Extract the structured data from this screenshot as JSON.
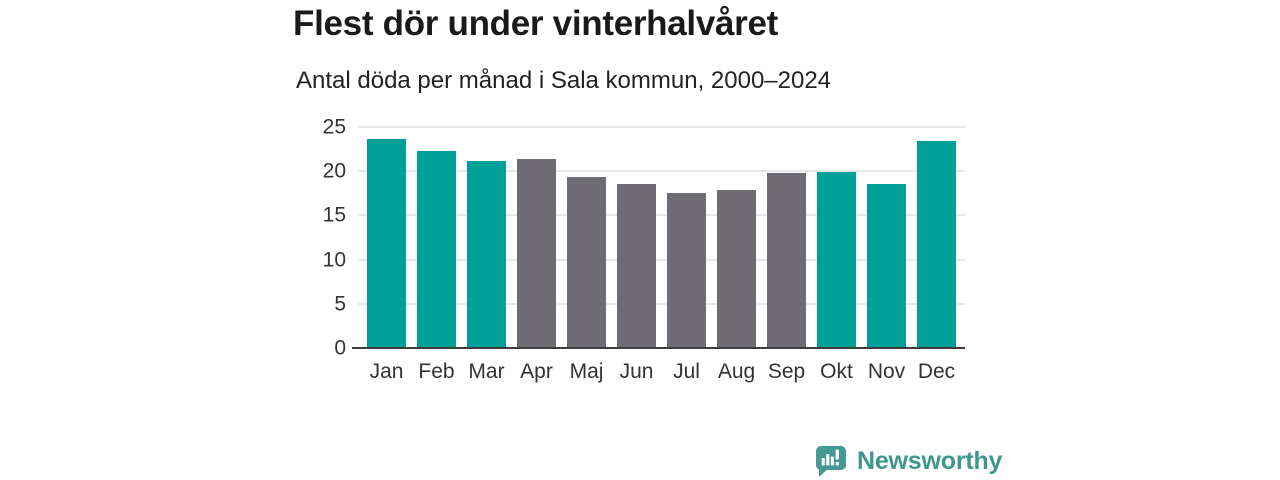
{
  "chart_data": {
    "type": "bar",
    "title": "Flest dör under vinterhalvåret",
    "subtitle": "Antal döda per månad i Sala kommun, 2000–2024",
    "categories": [
      "Jan",
      "Feb",
      "Mar",
      "Apr",
      "Maj",
      "Jun",
      "Jul",
      "Aug",
      "Sep",
      "Okt",
      "Nov",
      "Dec"
    ],
    "values": [
      23.6,
      22.3,
      21.2,
      21.4,
      19.4,
      18.5,
      17.5,
      17.9,
      19.8,
      19.9,
      18.6,
      23.4
    ],
    "bar_color_keys": [
      "teal",
      "teal",
      "teal",
      "gray",
      "gray",
      "gray",
      "gray",
      "gray",
      "gray",
      "teal",
      "teal",
      "teal"
    ],
    "colors": {
      "teal": "#00a099",
      "gray": "#6e6b73"
    },
    "xlabel": "",
    "ylabel": "",
    "ylim": [
      0,
      25
    ],
    "yticks": [
      0,
      5,
      10,
      15,
      20,
      25
    ],
    "grid": true,
    "legend": false
  },
  "branding": {
    "label": "Newsworthy",
    "text_color": "#3f968f",
    "icon_color": "#449a93",
    "icon": "newsworthy-speech-bubble-bar-chart-icon"
  }
}
